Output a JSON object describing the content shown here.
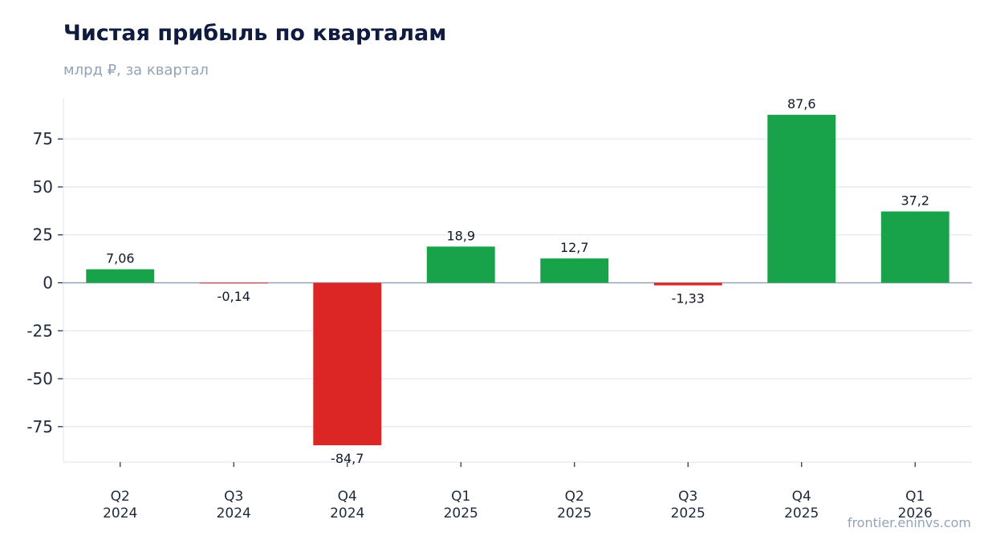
{
  "header": {
    "title": "Чистая прибыль по кварталам",
    "subtitle": "млрд ₽, за квартал"
  },
  "footer": {
    "source": "frontier.eninvs.com"
  },
  "colors": {
    "positive": "#18a34a",
    "negative": "#dc2626",
    "grid": "#e2e8f0",
    "zero_line": "#94a3b8"
  },
  "chart_data": {
    "type": "bar",
    "title": "Чистая прибыль по кварталам",
    "subtitle": "млрд ₽, за квартал",
    "categories": [
      [
        "Q2",
        "2024"
      ],
      [
        "Q3",
        "2024"
      ],
      [
        "Q4",
        "2024"
      ],
      [
        "Q1",
        "2025"
      ],
      [
        "Q2",
        "2025"
      ],
      [
        "Q3",
        "2025"
      ],
      [
        "Q4",
        "2025"
      ],
      [
        "Q1",
        "2026"
      ]
    ],
    "values": [
      7.06,
      -0.14,
      -84.7,
      18.9,
      12.7,
      -1.33,
      87.6,
      37.2
    ],
    "value_labels": [
      "7,06",
      "-0,14",
      "-84,7",
      "18,9",
      "12,7",
      "-1,33",
      "87,6",
      "37,2"
    ],
    "ylim": [
      -93.5,
      96
    ],
    "yticks": [
      -75,
      -50,
      -25,
      0,
      25,
      50,
      75
    ],
    "grid": true,
    "xlabel": "",
    "ylabel": ""
  }
}
